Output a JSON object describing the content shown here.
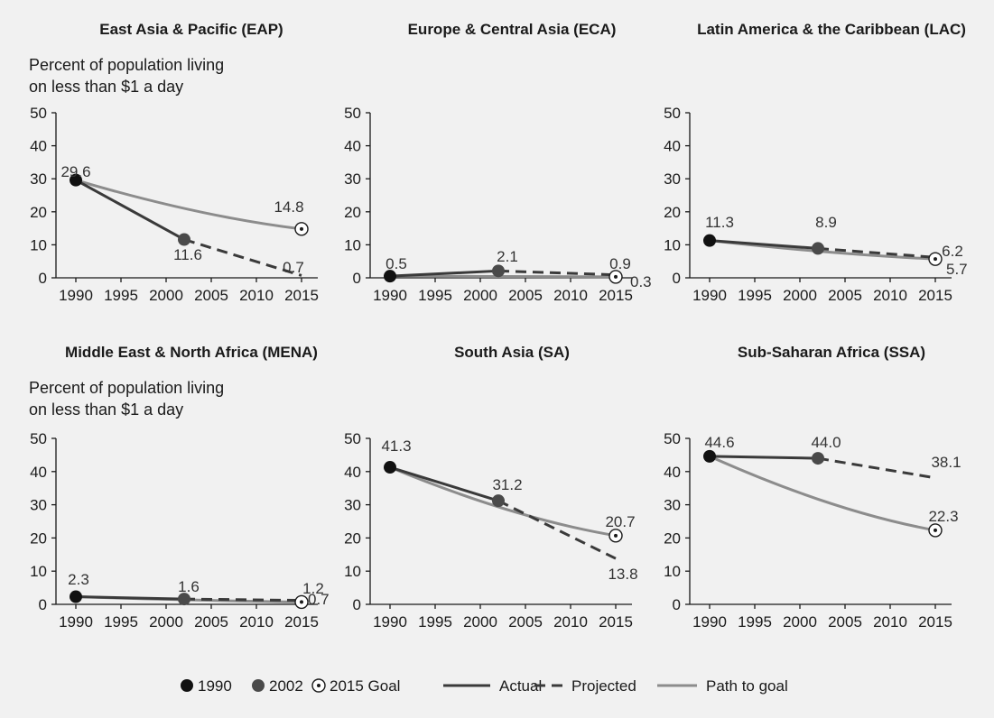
{
  "chart_data": [
    {
      "type": "line",
      "title": "East Asia & Pacific (EAP)",
      "ylabel": "Percent of population living on less than $1 a day",
      "ylabel_lines": [
        "Percent of population living",
        "on less than $1 a day"
      ],
      "x_ticks": [
        1990,
        1995,
        2000,
        2005,
        2010,
        2015
      ],
      "y_ticks": [
        0,
        10,
        20,
        30,
        40,
        50
      ],
      "xlim": [
        1990,
        2015
      ],
      "ylim": [
        0,
        50
      ],
      "series": [
        {
          "name": "Actual",
          "x": [
            1990,
            2002
          ],
          "y": [
            29.6,
            11.6
          ]
        },
        {
          "name": "Projected",
          "x": [
            2002,
            2015
          ],
          "y": [
            11.6,
            0.7
          ]
        },
        {
          "name": "Path to goal",
          "x": [
            1990,
            2015
          ],
          "y": [
            29.6,
            14.8
          ]
        }
      ],
      "points": {
        "1990": 29.6,
        "2002": 11.6,
        "2015 Goal": 14.8
      },
      "labels": [
        "29.6",
        "11.6",
        "14.8",
        "0.7"
      ]
    },
    {
      "type": "line",
      "title": "Europe & Central Asia (ECA)",
      "x_ticks": [
        1990,
        1995,
        2000,
        2005,
        2010,
        2015
      ],
      "y_ticks": [
        0,
        10,
        20,
        30,
        40,
        50
      ],
      "xlim": [
        1990,
        2015
      ],
      "ylim": [
        0,
        50
      ],
      "series": [
        {
          "name": "Actual",
          "x": [
            1990,
            2002
          ],
          "y": [
            0.5,
            2.1
          ]
        },
        {
          "name": "Projected",
          "x": [
            2002,
            2015
          ],
          "y": [
            2.1,
            0.9
          ]
        },
        {
          "name": "Path to goal",
          "x": [
            1990,
            2015
          ],
          "y": [
            0.5,
            0.3
          ]
        }
      ],
      "points": {
        "1990": 0.5,
        "2002": 2.1,
        "2015 Goal": 0.3
      },
      "labels": [
        "0.5",
        "2.1",
        "0.9",
        "0.3"
      ]
    },
    {
      "type": "line",
      "title": "Latin America & the Caribbean (LAC)",
      "x_ticks": [
        1990,
        1995,
        2000,
        2005,
        2010,
        2015
      ],
      "y_ticks": [
        0,
        10,
        20,
        30,
        40,
        50
      ],
      "xlim": [
        1990,
        2015
      ],
      "ylim": [
        0,
        50
      ],
      "series": [
        {
          "name": "Actual",
          "x": [
            1990,
            2002
          ],
          "y": [
            11.3,
            8.9
          ]
        },
        {
          "name": "Projected",
          "x": [
            2002,
            2015
          ],
          "y": [
            8.9,
            6.2
          ]
        },
        {
          "name": "Path to goal",
          "x": [
            1990,
            2015
          ],
          "y": [
            11.3,
            5.7
          ]
        }
      ],
      "points": {
        "1990": 11.3,
        "2002": 8.9,
        "2015 Goal": 5.7
      },
      "labels": [
        "11.3",
        "8.9",
        "6.2",
        "5.7"
      ]
    },
    {
      "type": "line",
      "title": "Middle East & North Africa (MENA)",
      "ylabel": "Percent of population living on less than $1 a day",
      "ylabel_lines": [
        "Percent of population living",
        "on less than $1 a day"
      ],
      "x_ticks": [
        1990,
        1995,
        2000,
        2005,
        2010,
        2015
      ],
      "y_ticks": [
        0,
        10,
        20,
        30,
        40,
        50
      ],
      "xlim": [
        1990,
        2015
      ],
      "ylim": [
        0,
        50
      ],
      "series": [
        {
          "name": "Actual",
          "x": [
            1990,
            2002
          ],
          "y": [
            2.3,
            1.6
          ]
        },
        {
          "name": "Projected",
          "x": [
            2002,
            2015
          ],
          "y": [
            1.6,
            1.2
          ]
        },
        {
          "name": "Path to goal",
          "x": [
            1990,
            2015
          ],
          "y": [
            2.3,
            0.7
          ]
        }
      ],
      "points": {
        "1990": 2.3,
        "2002": 1.6,
        "2015 Goal": 0.7
      },
      "labels": [
        "2.3",
        "1.6",
        "1.2",
        "0.7"
      ]
    },
    {
      "type": "line",
      "title": "South Asia (SA)",
      "x_ticks": [
        1990,
        1995,
        2000,
        2005,
        2010,
        2015
      ],
      "y_ticks": [
        0,
        10,
        20,
        30,
        40,
        50
      ],
      "xlim": [
        1990,
        2015
      ],
      "ylim": [
        0,
        50
      ],
      "series": [
        {
          "name": "Actual",
          "x": [
            1990,
            2002
          ],
          "y": [
            41.3,
            31.2
          ]
        },
        {
          "name": "Projected",
          "x": [
            2002,
            2015
          ],
          "y": [
            31.2,
            13.8
          ]
        },
        {
          "name": "Path to goal",
          "x": [
            1990,
            2015
          ],
          "y": [
            41.3,
            20.7
          ]
        }
      ],
      "points": {
        "1990": 41.3,
        "2002": 31.2,
        "2015 Goal": 20.7
      },
      "labels": [
        "41.3",
        "31.2",
        "20.7",
        "13.8"
      ]
    },
    {
      "type": "line",
      "title": "Sub-Saharan Africa (SSA)",
      "x_ticks": [
        1990,
        1995,
        2000,
        2005,
        2010,
        2015
      ],
      "y_ticks": [
        0,
        10,
        20,
        30,
        40,
        50
      ],
      "xlim": [
        1990,
        2015
      ],
      "ylim": [
        0,
        50
      ],
      "series": [
        {
          "name": "Actual",
          "x": [
            1990,
            2002
          ],
          "y": [
            44.6,
            44.0
          ]
        },
        {
          "name": "Projected",
          "x": [
            2002,
            2015
          ],
          "y": [
            44.0,
            38.1
          ]
        },
        {
          "name": "Path to goal",
          "x": [
            1990,
            2015
          ],
          "y": [
            44.6,
            22.3
          ]
        }
      ],
      "points": {
        "1990": 44.6,
        "2002": 44.0,
        "2015 Goal": 22.3
      },
      "labels": [
        "44.6",
        "44.0",
        "38.1",
        "22.3"
      ]
    }
  ],
  "legend": {
    "markers": [
      {
        "label": "1990",
        "symbol": "filled-circle-black"
      },
      {
        "label": "2002",
        "symbol": "filled-circle-gray"
      },
      {
        "label": "2015 Goal",
        "symbol": "dotted-circle"
      }
    ],
    "lines": [
      {
        "label": "Actual",
        "style": "solid-dark"
      },
      {
        "label": "Projected",
        "style": "dashed-dark"
      },
      {
        "label": "Path to goal",
        "style": "solid-light"
      }
    ]
  },
  "colors": {
    "background": "#f1f1f1",
    "actual": "#3a3a3a",
    "path": "#8c8c8c",
    "marker_1990": "#111111",
    "marker_2002": "#4a4a4a"
  }
}
